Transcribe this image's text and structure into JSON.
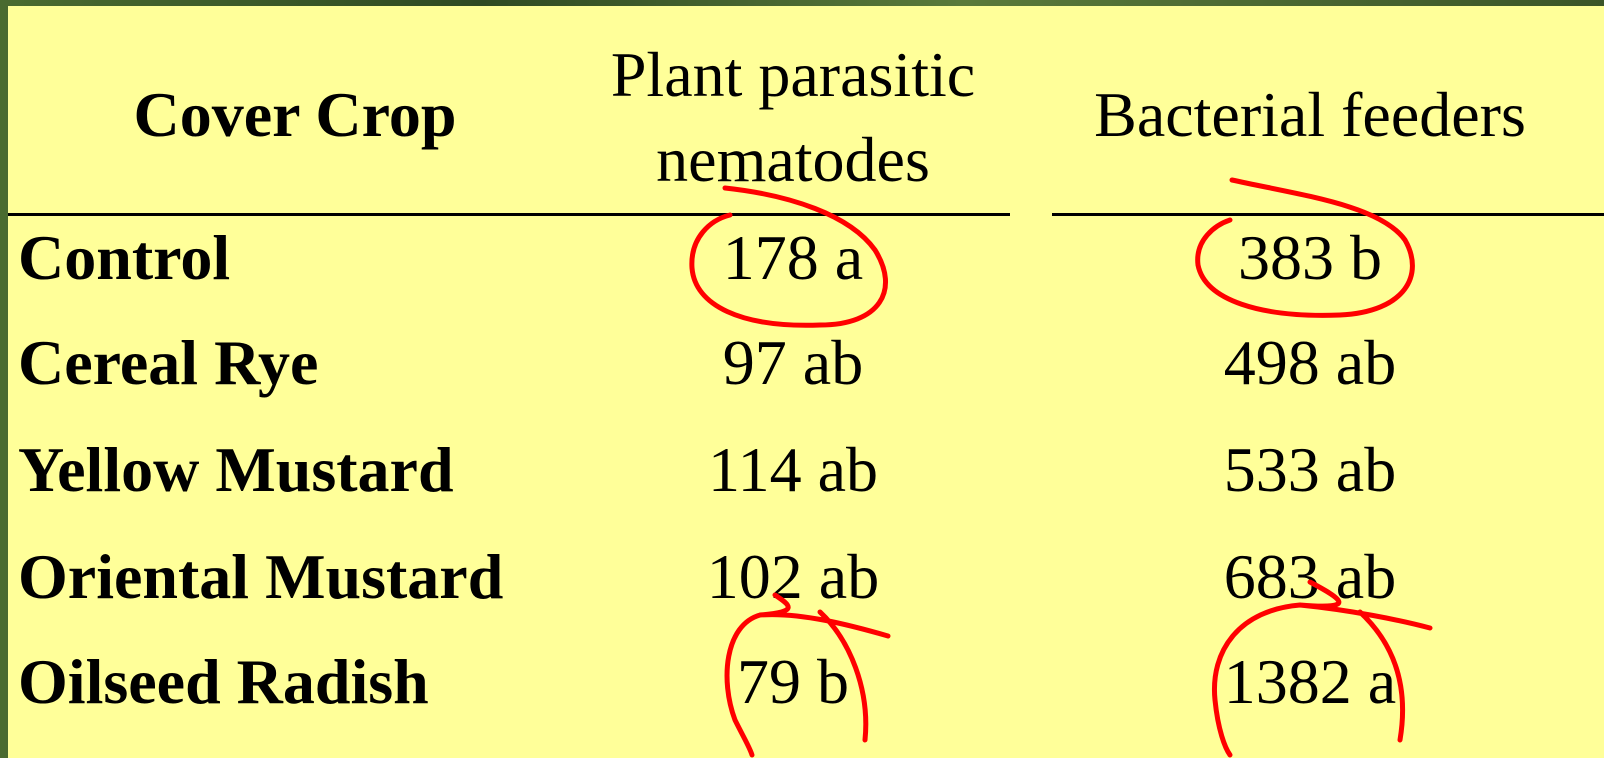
{
  "table": {
    "header": [
      "Cover Crop",
      [
        "Plant parasitic",
        "nematodes"
      ],
      "Bacterial feeders"
    ],
    "rows": [
      [
        "Control",
        "178 a",
        "383 b"
      ],
      [
        "Cereal Rye",
        "97 ab",
        "498 ab"
      ],
      [
        "Yellow Mustard",
        "114 ab",
        "533 ab"
      ],
      [
        "Oriental Mustard",
        "102 ab",
        "683 ab"
      ],
      [
        "Oilseed Radish",
        "79 b",
        "1382 a"
      ]
    ]
  }
}
